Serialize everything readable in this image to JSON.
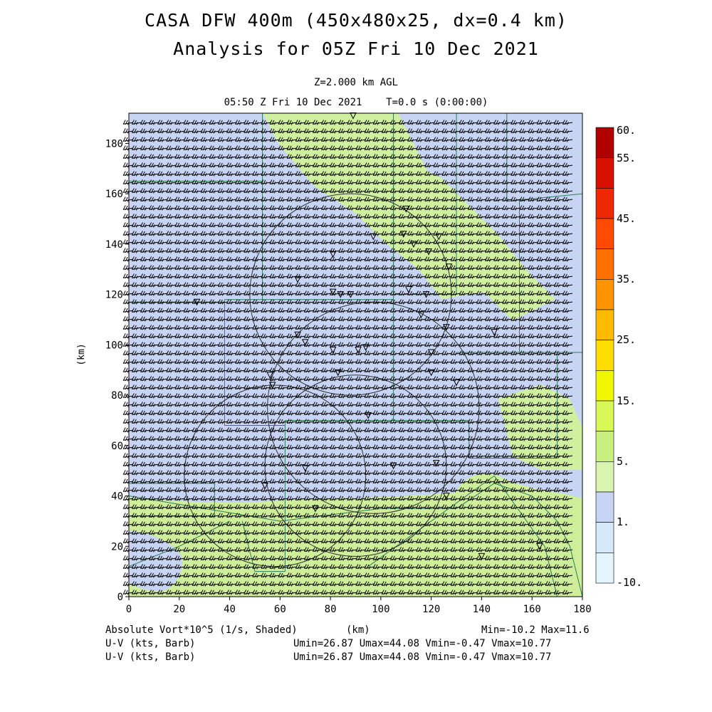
{
  "header": {
    "title_line1": "CASA DFW 400m (450x480x25, dx=0.4 km)",
    "title_line2": "Analysis for 05Z Fri 10 Dec 2021",
    "level": "Z=2.000 km AGL",
    "valid_time": "05:50 Z Fri 10 Dec 2021    T=0.0 s (0:00:00)"
  },
  "footer": {
    "field_label": "Absolute Vort*10^5 (1/s, Shaded)",
    "x_unit": "(km)",
    "minmax": "Min=-10.2 Max=11.6",
    "wind_label_1": "U-V (kts, Barb)",
    "wind_stats_1": "Umin=26.87 Umax=44.08 Vmin=-0.47 Vmax=10.77",
    "wind_label_2": "U-V (kts, Barb)",
    "wind_stats_2": "Umin=26.87 Umax=44.08 Vmin=-0.47 Vmax=10.77"
  },
  "chart_data": {
    "type": "heatmap",
    "field": "Absolute Vort*10^5 (1/s)",
    "min": -10.2,
    "max": 11.6,
    "xlabel": "",
    "ylabel": "(km)",
    "xlim": [
      0,
      180
    ],
    "ylim": [
      0,
      192
    ],
    "x_ticks": [
      0,
      20,
      40,
      60,
      80,
      100,
      120,
      140,
      160,
      180
    ],
    "y_ticks": [
      0,
      20,
      40,
      60,
      80,
      100,
      120,
      140,
      160,
      180
    ],
    "colorbar": {
      "labels": [
        "60.",
        "55.",
        "45.",
        "35.",
        "25.",
        "15.",
        "5.",
        "1.",
        "-10."
      ],
      "colors": [
        "#b00000",
        "#d81000",
        "#ee2800",
        "#ff4a00",
        "#ff7000",
        "#ff9400",
        "#ffbb00",
        "#ffdd00",
        "#f0f800",
        "#d8f858",
        "#c8f080",
        "#d8f4b0",
        "#c8d4f4",
        "#d4e8f8",
        "#e4f4fc"
      ]
    },
    "background_level_color": "#c8d4f4",
    "positive_region_color": "#d0f0a0",
    "wind": {
      "units": "kts",
      "dir_from_deg": 260,
      "speed_kts": 35,
      "u_min": 26.87,
      "u_max": 44.08,
      "v_min": -0.47,
      "v_max": 10.77
    },
    "radar_rings": [
      {
        "cx": 88,
        "cy": 120,
        "r": 40
      },
      {
        "cx": 90,
        "cy": 52,
        "r": 36
      },
      {
        "cx": 97,
        "cy": 75,
        "r": 42
      },
      {
        "cx": 58,
        "cy": 48,
        "r": 36
      }
    ],
    "stations": [
      [
        89,
        191
      ],
      [
        97,
        143
      ],
      [
        81,
        136
      ],
      [
        67,
        126
      ],
      [
        81,
        121
      ],
      [
        84,
        120
      ],
      [
        88,
        120
      ],
      [
        27,
        117
      ],
      [
        110,
        154
      ],
      [
        109,
        144
      ],
      [
        113,
        140
      ],
      [
        123,
        143
      ],
      [
        119,
        137
      ],
      [
        127,
        131
      ],
      [
        111,
        122
      ],
      [
        118,
        120
      ],
      [
        116,
        112
      ],
      [
        126,
        107
      ],
      [
        145,
        105
      ],
      [
        67,
        104
      ],
      [
        70,
        101
      ],
      [
        81,
        98
      ],
      [
        91,
        98
      ],
      [
        94,
        99
      ],
      [
        120,
        97
      ],
      [
        120,
        89
      ],
      [
        130,
        85
      ],
      [
        56,
        88
      ],
      [
        57,
        84
      ],
      [
        83,
        89
      ],
      [
        95,
        72
      ],
      [
        105,
        52
      ],
      [
        122,
        53
      ],
      [
        70,
        51
      ],
      [
        54,
        44
      ],
      [
        126,
        40
      ],
      [
        74,
        35
      ],
      [
        163,
        20
      ],
      [
        140,
        16
      ]
    ]
  }
}
